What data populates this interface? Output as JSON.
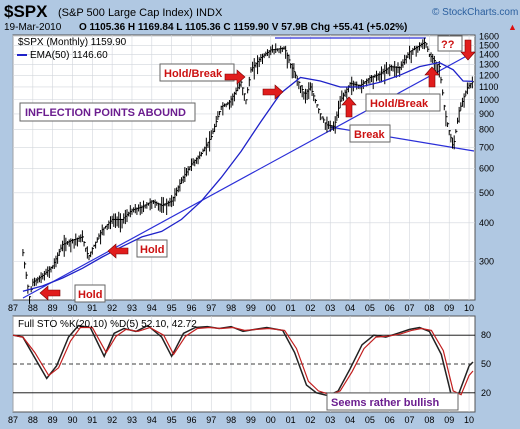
{
  "header": {
    "symbol": "$SPX",
    "name": "(S&P 500 Large Cap Index) INDX",
    "watermark": "© StockCharts.com",
    "date": "19-Mar-2010",
    "quote": "O 1105.36   H 1169.84   L 1105.36   C 1159.90   V 57.9B   Chg +55.41 (+5.02%)",
    "chg_glyph": "▲"
  },
  "legend": {
    "main": "$SPX (Monthly) 1159.90",
    "ema": "EMA(50) 1146.60",
    "sto": "Full STO %K(20,10) %D(5) 52.10, 42.72"
  },
  "annotations": {
    "inflection": "INFLECTION POINTS ABOUND",
    "hold_break_1": "Hold/Break",
    "hold_break_2": "Hold/Break",
    "break": "Break",
    "hold_1": "Hold",
    "hold_2": "Hold",
    "question": "??",
    "bullish": "Seems rather bullish"
  },
  "colors": {
    "panel_bg": "#ffffff",
    "outer_bg": "#b0c8e2",
    "price_bars": "#000000",
    "ema": "#1f22c9",
    "trendline": "#2b2fd8",
    "arrow": "#e11d1d",
    "label_text": "#cc1111",
    "inflection_text": "#6b1d8f",
    "stoK": "#222222",
    "stoD": "#c21f1f"
  },
  "chart_data": [
    {
      "type": "line",
      "title": "$SPX (Monthly)",
      "yscale": "log",
      "ylim": [
        225,
        1620
      ],
      "xlim": [
        1987.0,
        2010.3
      ],
      "y_ticks": [
        300,
        400,
        500,
        600,
        700,
        800,
        900,
        1000,
        1100,
        1200,
        1300,
        1400,
        1500,
        1600
      ],
      "x_tick_labels": [
        "87",
        "88",
        "89",
        "90",
        "91",
        "92",
        "93",
        "94",
        "95",
        "96",
        "97",
        "98",
        "99",
        "00",
        "01",
        "02",
        "03",
        "04",
        "05",
        "06",
        "07",
        "08",
        "09",
        "10"
      ],
      "series": [
        {
          "name": "$SPX (Monthly)",
          "x": [
            1987.5,
            1987.83,
            1988.0,
            1988.5,
            1989.0,
            1989.5,
            1989.9,
            1990.5,
            1990.8,
            1991.0,
            1991.5,
            1992.0,
            1992.5,
            1993.0,
            1993.5,
            1994.0,
            1994.5,
            1995.0,
            1995.5,
            1996.0,
            1996.5,
            1997.0,
            1997.5,
            1997.9,
            1998.5,
            1998.75,
            1999.0,
            1999.5,
            2000.0,
            2000.7,
            2001.0,
            2001.7,
            2002.0,
            2002.5,
            2002.8,
            2003.2,
            2003.5,
            2004.0,
            2004.5,
            2005.0,
            2005.5,
            2006.0,
            2006.5,
            2007.0,
            2007.8,
            2008.0,
            2008.5,
            2008.8,
            2009.2,
            2009.5,
            2009.9,
            2010.2
          ],
          "y": [
            320,
            230,
            257,
            270,
            290,
            340,
            350,
            360,
            310,
            330,
            380,
            410,
            410,
            440,
            450,
            470,
            455,
            470,
            550,
            620,
            670,
            760,
            950,
            980,
            1140,
            1000,
            1250,
            1370,
            1450,
            1470,
            1300,
            1040,
            1100,
            900,
            830,
            820,
            990,
            1130,
            1110,
            1180,
            1210,
            1280,
            1270,
            1430,
            1540,
            1400,
            1280,
            900,
            700,
            920,
            1090,
            1150
          ]
        },
        {
          "name": "EMA(50)",
          "x": [
            1987.5,
            1988.5,
            1989.5,
            1990.5,
            1991.5,
            1992.5,
            1993.5,
            1994.5,
            1995.5,
            1996.5,
            1997.5,
            1998.5,
            1999.5,
            2000.5,
            2001.5,
            2002.5,
            2003.5,
            2004.5,
            2005.5,
            2006.5,
            2007.5,
            2008.5,
            2009.2,
            2009.7,
            2010.2
          ],
          "y": [
            240,
            250,
            265,
            285,
            310,
            335,
            360,
            375,
            410,
            470,
            560,
            680,
            850,
            1050,
            1180,
            1150,
            1100,
            1100,
            1140,
            1200,
            1280,
            1320,
            1250,
            1150,
            1146.6
          ]
        }
      ]
    },
    {
      "type": "line",
      "title": "Full STO %K(20,10) %D(5)",
      "ylim": [
        0,
        100
      ],
      "y_ticks": [
        20,
        50,
        80
      ],
      "series": [
        {
          "name": "%K",
          "x": [
            1987.0,
            1987.5,
            1988.0,
            1988.7,
            1989.2,
            1989.8,
            1990.3,
            1990.9,
            1991.6,
            1992.1,
            1992.6,
            1993.2,
            1993.8,
            1994.5,
            1995.0,
            1995.6,
            1996.2,
            1996.8,
            1997.4,
            1998.0,
            1998.6,
            1999.2,
            1999.8,
            2000.6,
            2001.2,
            2001.8,
            2002.3,
            2002.9,
            2003.4,
            2004.0,
            2004.6,
            2005.2,
            2005.8,
            2006.4,
            2007.0,
            2007.5,
            2008.0,
            2008.6,
            2009.1,
            2009.5,
            2010.0,
            2010.2
          ],
          "y": [
            80,
            78,
            60,
            35,
            48,
            78,
            90,
            88,
            58,
            82,
            87,
            84,
            90,
            78,
            58,
            82,
            88,
            89,
            87,
            89,
            84,
            86,
            88,
            85,
            62,
            28,
            20,
            17,
            22,
            45,
            70,
            80,
            78,
            82,
            86,
            88,
            84,
            60,
            18,
            20,
            48,
            52.1
          ]
        },
        {
          "name": "%D",
          "x": [
            1987.0,
            1987.5,
            1988.1,
            1988.8,
            1989.3,
            1989.9,
            1990.4,
            1991.0,
            1991.7,
            1992.2,
            1992.7,
            1993.3,
            1993.9,
            1994.6,
            1995.1,
            1995.7,
            1996.3,
            1996.9,
            1997.5,
            1998.1,
            1998.7,
            1999.3,
            1999.9,
            2000.7,
            2001.3,
            2001.9,
            2002.4,
            2003.0,
            2003.5,
            2004.1,
            2004.7,
            2005.3,
            2005.9,
            2006.5,
            2007.1,
            2007.6,
            2008.1,
            2008.7,
            2009.2,
            2009.6,
            2010.0,
            2010.2
          ],
          "y": [
            80,
            78,
            62,
            38,
            46,
            74,
            88,
            88,
            62,
            79,
            86,
            84,
            88,
            80,
            60,
            79,
            87,
            88,
            87,
            88,
            85,
            86,
            87,
            85,
            66,
            32,
            22,
            18,
            22,
            42,
            66,
            78,
            79,
            81,
            85,
            87,
            85,
            64,
            22,
            18,
            38,
            42.72
          ]
        }
      ]
    }
  ]
}
